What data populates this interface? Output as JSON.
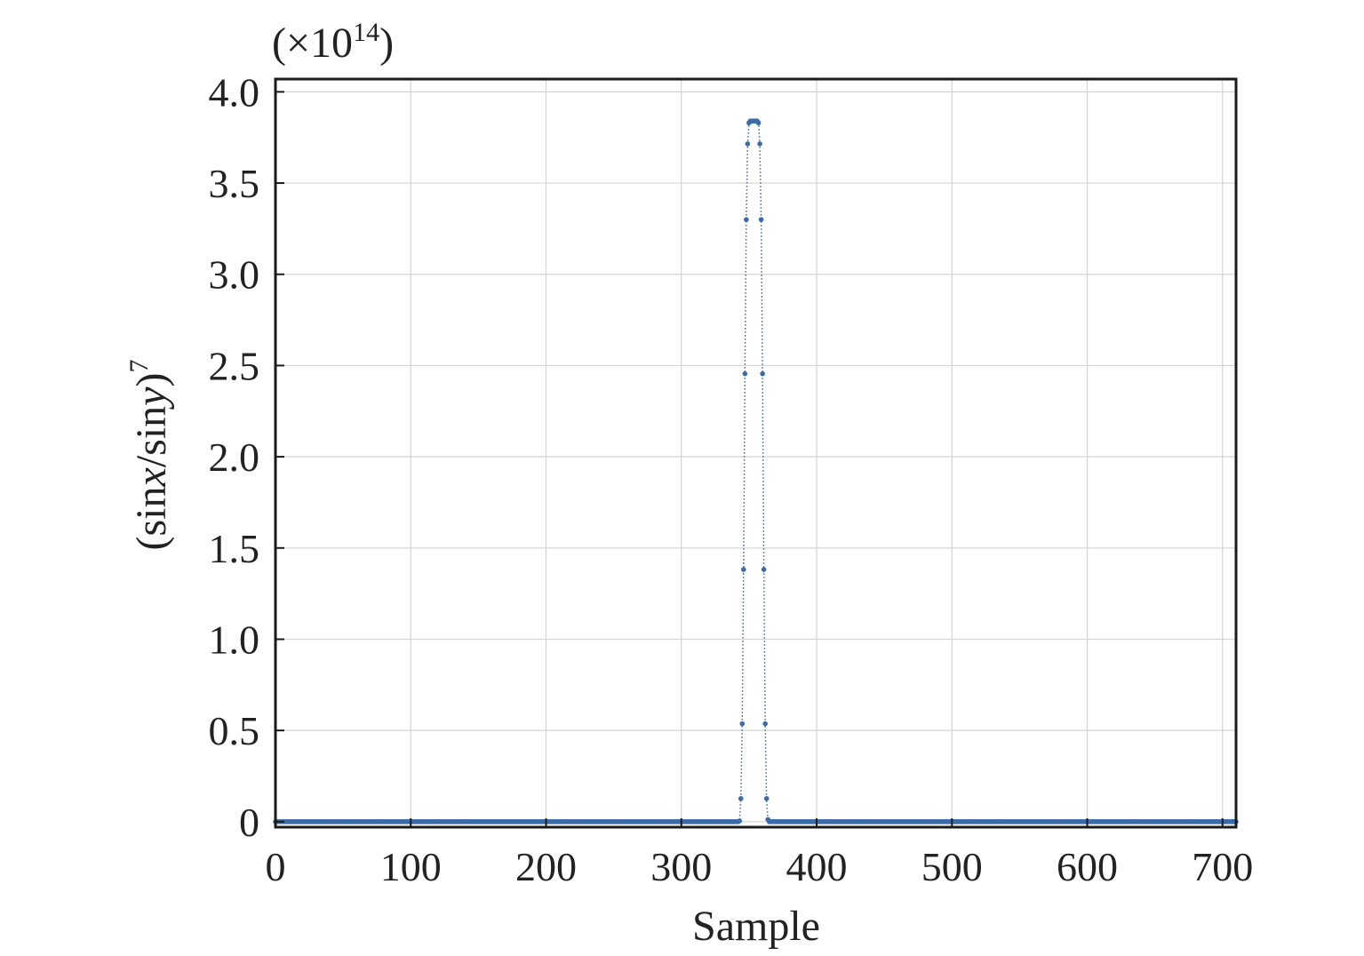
{
  "chart_data": {
    "type": "scatter",
    "xlabel": "Sample",
    "ylabel_parts": {
      "prefix": "(sin",
      "x_var": "x",
      "mid": "/sin",
      "y_var": "y",
      "close": ")",
      "exponent": "7"
    },
    "ylabel": "(sinx/siny)^7",
    "y_scale_parts": {
      "prefix": "(×10",
      "exponent": "14",
      "suffix": ")"
    },
    "y_scale": "×10^14",
    "xlim": [
      0,
      710
    ],
    "ylim": [
      -0.03,
      4.07
    ],
    "x_ticks": [
      0,
      100,
      200,
      300,
      400,
      500,
      600,
      700
    ],
    "x_tick_labels": [
      "0",
      "100",
      "200",
      "300",
      "400",
      "500",
      "600",
      "700"
    ],
    "y_ticks": [
      0,
      0.5,
      1.0,
      1.5,
      2.0,
      2.5,
      3.0,
      3.5,
      4.0
    ],
    "y_tick_labels": [
      "0",
      "0.5",
      "1.0",
      "1.5",
      "2.0",
      "2.5",
      "3.0",
      "3.5",
      "4.0"
    ],
    "grid": true,
    "line_style": "dotted",
    "series_color": "#3a6aa8",
    "baseline": {
      "x_range": [
        0,
        710
      ],
      "step": 1,
      "y": 0
    },
    "peak_points": [
      {
        "x": 342,
        "y": 0.0
      },
      {
        "x": 343,
        "y": 0.004
      },
      {
        "x": 344,
        "y": 0.127
      },
      {
        "x": 345,
        "y": 0.537
      },
      {
        "x": 346,
        "y": 1.382
      },
      {
        "x": 347,
        "y": 2.455
      },
      {
        "x": 348,
        "y": 3.3
      },
      {
        "x": 349,
        "y": 3.715
      },
      {
        "x": 350,
        "y": 3.83
      },
      {
        "x": 351,
        "y": 3.84
      },
      {
        "x": 352,
        "y": 3.84
      },
      {
        "x": 353,
        "y": 3.84
      },
      {
        "x": 354,
        "y": 3.84
      },
      {
        "x": 355,
        "y": 3.84
      },
      {
        "x": 356,
        "y": 3.84
      },
      {
        "x": 357,
        "y": 3.83
      },
      {
        "x": 358,
        "y": 3.715
      },
      {
        "x": 359,
        "y": 3.3
      },
      {
        "x": 360,
        "y": 2.455
      },
      {
        "x": 361,
        "y": 1.382
      },
      {
        "x": 362,
        "y": 0.537
      },
      {
        "x": 363,
        "y": 0.127
      },
      {
        "x": 364,
        "y": 0.012
      },
      {
        "x": 365,
        "y": 0.0
      }
    ]
  }
}
